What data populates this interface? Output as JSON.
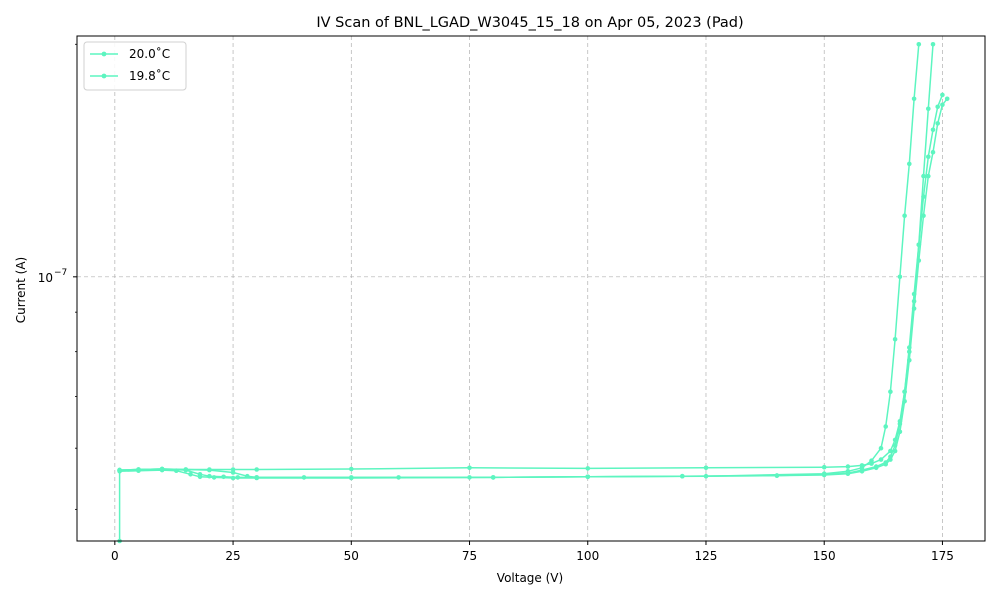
{
  "chart_data": {
    "type": "line",
    "title": "IV Scan of BNL_LGAD_W3045_15_18 on Apr 05, 2023 (Pad)",
    "xlabel": "Voltage (V)",
    "ylabel": "Current (A)",
    "xlim": [
      -8,
      184
    ],
    "ylim": [
      4.55e-08,
      2.05e-07
    ],
    "yscale": "log",
    "grid": true,
    "legend_position": "top-left",
    "x_ticks": [
      0,
      25,
      50,
      75,
      100,
      125,
      150,
      175
    ],
    "x_tick_labels": [
      "0",
      "25",
      "50",
      "75",
      "100",
      "125",
      "150",
      "175"
    ],
    "y_ticks": [
      1e-07
    ],
    "y_tick_labels": [
      "10",
      "−7"
    ],
    "color": "#5df5c0",
    "series": [
      {
        "name": "20.0˚C",
        "sweeps": [
          {
            "x": [
              1,
              1,
              5,
              10,
              15,
              18,
              20,
              23,
              26,
              30,
              40,
              60,
              80,
              100,
              120,
              140,
              150,
              155,
              158,
              161,
              163,
              164,
              165,
              166,
              167,
              168,
              169,
              170,
              171,
              172,
              173,
              174,
              175,
              176
            ],
            "y": [
              4.55e-08,
              5.62e-08,
              5.63e-08,
              5.64e-08,
              5.62e-08,
              5.55e-08,
              5.52e-08,
              5.51e-08,
              5.5e-08,
              5.5e-08,
              5.5e-08,
              5.5e-08,
              5.5e-08,
              5.51e-08,
              5.52e-08,
              5.53e-08,
              5.54e-08,
              5.56e-08,
              5.6e-08,
              5.66e-08,
              5.72e-08,
              5.8e-08,
              5.95e-08,
              6.3e-08,
              6.9e-08,
              7.8e-08,
              9.1e-08,
              1.05e-07,
              1.2e-07,
              1.35e-07,
              1.45e-07,
              1.58e-07,
              1.67e-07,
              1.7e-07
            ]
          },
          {
            "x": [
              1,
              5,
              10,
              13,
              16,
              18,
              21,
              25,
              30,
              50,
              80,
              100,
              120,
              140,
              150,
              155,
              158,
              161,
              163,
              164,
              165,
              166,
              167,
              168,
              169,
              170,
              171,
              172,
              173,
              174,
              175
            ],
            "y": [
              5.6e-08,
              5.61e-08,
              5.62e-08,
              5.61e-08,
              5.55e-08,
              5.51e-08,
              5.5e-08,
              5.49e-08,
              5.49e-08,
              5.49e-08,
              5.5e-08,
              5.51e-08,
              5.52e-08,
              5.53e-08,
              5.55e-08,
              5.57e-08,
              5.62e-08,
              5.68e-08,
              5.75e-08,
              5.85e-08,
              6.05e-08,
              6.45e-08,
              7.1e-08,
              8.1e-08,
              9.5e-08,
              1.1e-07,
              1.27e-07,
              1.43e-07,
              1.55e-07,
              1.66e-07,
              1.72e-07
            ]
          }
        ]
      },
      {
        "name": "19.8˚C",
        "sweeps": [
          {
            "x": [
              1,
              5,
              10,
              15,
              20,
              25,
              28,
              30,
              50,
              75,
              100,
              125,
              150,
              155,
              158,
              160,
              162,
              163,
              164,
              165,
              166,
              167,
              168,
              169,
              170
            ],
            "y": [
              5.62e-08,
              5.63e-08,
              5.64e-08,
              5.63e-08,
              5.62e-08,
              5.58e-08,
              5.52e-08,
              5.5e-08,
              5.5e-08,
              5.5e-08,
              5.51e-08,
              5.52e-08,
              5.56e-08,
              5.6e-08,
              5.66e-08,
              5.78e-08,
              6e-08,
              6.4e-08,
              7.1e-08,
              8.3e-08,
              1e-07,
              1.2e-07,
              1.4e-07,
              1.7e-07,
              2e-07
            ]
          },
          {
            "x": [
              1,
              5,
              10,
              15,
              20,
              25,
              30,
              50,
              75,
              100,
              125,
              150,
              155,
              158,
              160,
              162,
              164,
              165,
              166,
              167,
              168,
              169,
              170,
              171,
              172,
              173
            ],
            "y": [
              5.62e-08,
              5.63e-08,
              5.64e-08,
              5.63e-08,
              5.63e-08,
              5.63e-08,
              5.63e-08,
              5.64e-08,
              5.66e-08,
              5.65e-08,
              5.66e-08,
              5.67e-08,
              5.68e-08,
              5.7e-08,
              5.73e-08,
              5.8e-08,
              5.95e-08,
              6.15e-08,
              6.5e-08,
              7.1e-08,
              8e-08,
              9.3e-08,
              1.1e-07,
              1.35e-07,
              1.65e-07,
              2e-07
            ]
          }
        ]
      }
    ]
  }
}
